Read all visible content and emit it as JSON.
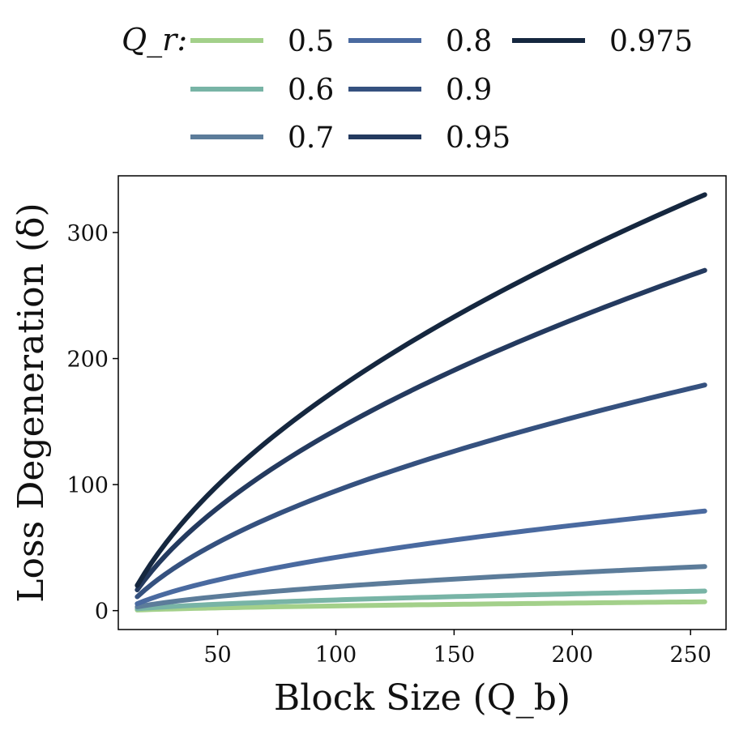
{
  "chart_data": {
    "type": "line",
    "title": "",
    "xlabel": "Block Size (Q_b)",
    "ylabel": "Loss Degeneration (δ)",
    "xlim": [
      8,
      265
    ],
    "ylim": [
      -15,
      345
    ],
    "xticks": [
      50,
      100,
      150,
      200,
      250
    ],
    "yticks": [
      0,
      100,
      200,
      300
    ],
    "grid": false,
    "legend": {
      "title": "Q_r:",
      "placement": "top"
    },
    "x_range": [
      16,
      256
    ],
    "series": [
      {
        "name": "0.5",
        "color": "#a3d08a",
        "x": [
          16,
          256
        ],
        "values": [
          0.5,
          7
        ],
        "shape": "power-0.5"
      },
      {
        "name": "0.6",
        "color": "#78b4a6",
        "x": [
          16,
          256
        ],
        "values": [
          1.5,
          15.5
        ],
        "shape": "power-0.5"
      },
      {
        "name": "0.7",
        "color": "#5c7c9a",
        "x": [
          16,
          256
        ],
        "values": [
          3,
          35
        ],
        "shape": "power-0.5"
      },
      {
        "name": "0.8",
        "color": "#4a6aa0",
        "x": [
          16,
          256
        ],
        "values": [
          5.5,
          79
        ],
        "shape": "power-0.5"
      },
      {
        "name": "0.9",
        "color": "#35517f",
        "x": [
          16,
          256
        ],
        "values": [
          11,
          179
        ],
        "shape": "power-0.5"
      },
      {
        "name": "0.95",
        "color": "#243a5f",
        "x": [
          16,
          256
        ],
        "values": [
          16.5,
          270
        ],
        "shape": "power-0.5"
      },
      {
        "name": "0.975",
        "color": "#15273f",
        "x": [
          16,
          256
        ],
        "values": [
          20,
          330
        ],
        "shape": "power-0.5"
      }
    ]
  }
}
